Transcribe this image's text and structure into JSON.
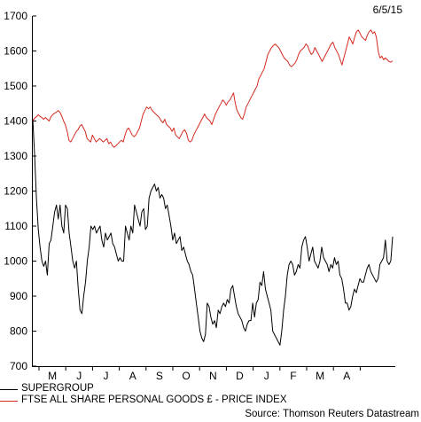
{
  "chart_data": {
    "type": "line",
    "date_label": "6/5/15",
    "source": "Source: Thomson Reuters Datastream",
    "x_ticks": [
      "M",
      "J",
      "J",
      "A",
      "S",
      "O",
      "N",
      "D",
      "J",
      "F",
      "M",
      "A"
    ],
    "y_ticks": [
      700,
      800,
      900,
      1000,
      1100,
      1200,
      1300,
      1400,
      1500,
      1600,
      1700
    ],
    "ylim": [
      700,
      1700
    ],
    "grid": false,
    "legend_position": "bottom-left",
    "series": [
      {
        "name": "SUPERGROUP",
        "color": "#000000",
        "values": [
          1405,
          1300,
          1180,
          1090,
          1040,
          1000,
          985,
          1000,
          960,
          1050,
          1060,
          1100,
          1140,
          1160,
          1120,
          1160,
          1100,
          1080,
          1160,
          1150,
          1080,
          1040,
          1000,
          980,
          1000,
          920,
          860,
          850,
          900,
          940,
          1000,
          1040,
          1100,
          1090,
          1100,
          1080,
          1090,
          1100,
          1060,
          1040,
          1080,
          1060,
          1070,
          1080,
          1050,
          1040,
          1020,
          1000,
          1010,
          1000,
          1000,
          1100,
          1080,
          1060,
          1100,
          1080,
          1160,
          1140,
          1120,
          1100,
          1140,
          1150,
          1090,
          1100,
          1180,
          1200,
          1210,
          1220,
          1200,
          1210,
          1180,
          1190,
          1180,
          1150,
          1160,
          1130,
          1100,
          1060,
          1080,
          1050,
          1060,
          1070,
          1030,
          1040,
          1020,
          1000,
          990,
          970,
          960,
          920,
          880,
          840,
          800,
          780,
          770,
          790,
          880,
          870,
          840,
          820,
          830,
          810,
          860,
          850,
          870,
          880,
          870,
          890,
          880,
          920,
          930,
          900,
          870,
          850,
          840,
          830,
          810,
          800,
          820,
          830,
          830,
          880,
          840,
          880,
          890,
          940,
          930,
          970,
          920,
          900,
          880,
          860,
          800,
          790,
          780,
          770,
          760,
          800,
          860,
          900,
          960,
          990,
          1000,
          990,
          960,
          970,
          990,
          980,
          1040,
          1060,
          1070,
          1040,
          1000,
          1020,
          1040,
          1000,
          990,
          980,
          1000,
          1040,
          1010,
          1000,
          990,
          970,
          990,
          980,
          1010,
          990,
          1000,
          960,
          950,
          920,
          880,
          880,
          860,
          870,
          900,
          920,
          910,
          930,
          950,
          940,
          940,
          960,
          980,
          990,
          970,
          960,
          950,
          940,
          950,
          990,
          1000,
          1010,
          1060,
          1000,
          990,
          1000,
          1070
        ]
      },
      {
        "name": "FTSE ALL SHARE PERSONAL GOODS £ - PRICE INDEX",
        "color": "#d42a20",
        "values": [
          1400,
          1408,
          1412,
          1418,
          1413,
          1410,
          1405,
          1410,
          1405,
          1400,
          1412,
          1418,
          1422,
          1425,
          1430,
          1425,
          1415,
          1400,
          1390,
          1370,
          1345,
          1340,
          1350,
          1360,
          1370,
          1375,
          1385,
          1390,
          1380,
          1370,
          1350,
          1345,
          1340,
          1360,
          1350,
          1340,
          1345,
          1350,
          1345,
          1340,
          1345,
          1350,
          1335,
          1340,
          1330,
          1325,
          1330,
          1335,
          1340,
          1345,
          1340,
          1360,
          1375,
          1380,
          1370,
          1360,
          1355,
          1360,
          1370,
          1380,
          1400,
          1420,
          1430,
          1440,
          1435,
          1440,
          1430,
          1425,
          1420,
          1415,
          1410,
          1400,
          1395,
          1405,
          1390,
          1385,
          1380,
          1370,
          1380,
          1360,
          1355,
          1350,
          1360,
          1370,
          1375,
          1365,
          1345,
          1340,
          1345,
          1360,
          1370,
          1380,
          1390,
          1400,
          1410,
          1420,
          1410,
          1405,
          1400,
          1390,
          1405,
          1420,
          1430,
          1440,
          1450,
          1460,
          1455,
          1445,
          1455,
          1460,
          1470,
          1480,
          1450,
          1430,
          1420,
          1410,
          1405,
          1420,
          1440,
          1450,
          1460,
          1470,
          1480,
          1490,
          1500,
          1520,
          1530,
          1540,
          1550,
          1570,
          1590,
          1600,
          1610,
          1615,
          1620,
          1615,
          1610,
          1600,
          1590,
          1580,
          1575,
          1570,
          1560,
          1555,
          1560,
          1565,
          1575,
          1590,
          1600,
          1605,
          1610,
          1620,
          1615,
          1600,
          1590,
          1595,
          1610,
          1600,
          1590,
          1580,
          1570,
          1580,
          1590,
          1600,
          1610,
          1620,
          1625,
          1610,
          1600,
          1590,
          1575,
          1560,
          1580,
          1600,
          1620,
          1640,
          1630,
          1620,
          1640,
          1655,
          1660,
          1650,
          1640,
          1635,
          1630,
          1645,
          1655,
          1660,
          1650,
          1655,
          1640,
          1600,
          1580,
          1585,
          1575,
          1580,
          1575,
          1570,
          1568,
          1572
        ]
      }
    ]
  }
}
